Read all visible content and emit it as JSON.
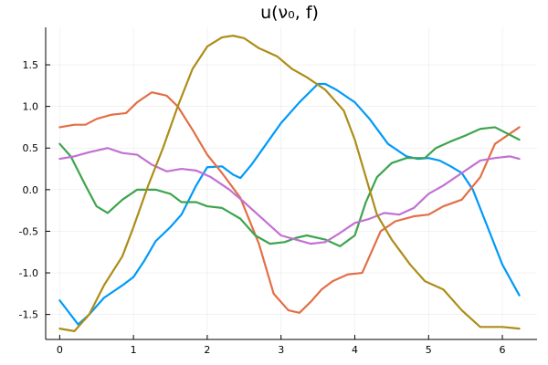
{
  "chart_data": {
    "type": "line",
    "title": "u(ν₀, f)",
    "xlabel": "",
    "ylabel": "",
    "xlim": [
      -0.19,
      6.47
    ],
    "ylim": [
      -1.8,
      1.95
    ],
    "xticks": [
      0,
      1,
      2,
      3,
      4,
      5,
      6
    ],
    "yticks": [
      -1.5,
      -1.0,
      -0.5,
      0.0,
      0.5,
      1.0,
      1.5
    ],
    "ytick_labels": [
      "-1.5",
      "-1.0",
      "-0.5",
      "0.0",
      "0.5",
      "1.0",
      "1.5"
    ],
    "grid": true,
    "legend": "none",
    "series": [
      {
        "color": "#009af9",
        "x": [
          0,
          0.25,
          0.4,
          0.6,
          0.85,
          1.0,
          1.15,
          1.3,
          1.5,
          1.65,
          1.85,
          2.0,
          2.2,
          2.35,
          2.45,
          2.6,
          2.8,
          3.0,
          3.25,
          3.5,
          3.6,
          3.75,
          4.0,
          4.2,
          4.45,
          4.7,
          4.85,
          5.0,
          5.15,
          5.3,
          5.45,
          5.6,
          5.8,
          6.0,
          6.23
        ],
        "y": [
          -1.33,
          -1.62,
          -1.5,
          -1.3,
          -1.15,
          -1.05,
          -0.85,
          -0.62,
          -0.45,
          -0.3,
          0.05,
          0.27,
          0.28,
          0.18,
          0.14,
          0.3,
          0.55,
          0.8,
          1.05,
          1.27,
          1.27,
          1.2,
          1.05,
          0.85,
          0.55,
          0.4,
          0.37,
          0.38,
          0.35,
          0.28,
          0.2,
          0.0,
          -0.45,
          -0.9,
          -1.27
        ]
      },
      {
        "color": "#e26f46",
        "x": [
          0,
          0.2,
          0.35,
          0.5,
          0.7,
          0.9,
          1.05,
          1.25,
          1.45,
          1.6,
          1.8,
          2.0,
          2.2,
          2.45,
          2.7,
          2.9,
          3.1,
          3.25,
          3.4,
          3.55,
          3.7,
          3.9,
          4.1,
          4.2,
          4.35,
          4.55,
          4.8,
          5.0,
          5.2,
          5.45,
          5.7,
          5.9,
          6.23
        ],
        "y": [
          0.75,
          0.78,
          0.78,
          0.85,
          0.9,
          0.92,
          1.05,
          1.17,
          1.13,
          1.0,
          0.72,
          0.42,
          0.2,
          -0.1,
          -0.65,
          -1.25,
          -1.45,
          -1.48,
          -1.35,
          -1.2,
          -1.1,
          -1.02,
          -1.0,
          -0.8,
          -0.5,
          -0.38,
          -0.32,
          -0.3,
          -0.2,
          -0.12,
          0.15,
          0.55,
          0.75
        ]
      },
      {
        "color": "#3da44d",
        "x": [
          0,
          0.15,
          0.35,
          0.5,
          0.65,
          0.85,
          1.05,
          1.3,
          1.5,
          1.65,
          1.85,
          2.0,
          2.2,
          2.45,
          2.65,
          2.85,
          3.05,
          3.2,
          3.35,
          3.6,
          3.8,
          4.0,
          4.15,
          4.3,
          4.5,
          4.7,
          4.95,
          5.1,
          5.3,
          5.5,
          5.7,
          5.9,
          6.23
        ],
        "y": [
          0.55,
          0.4,
          0.05,
          -0.2,
          -0.28,
          -0.12,
          0.0,
          0.0,
          -0.05,
          -0.15,
          -0.15,
          -0.2,
          -0.22,
          -0.35,
          -0.55,
          -0.65,
          -0.63,
          -0.58,
          -0.55,
          -0.6,
          -0.68,
          -0.55,
          -0.15,
          0.15,
          0.32,
          0.38,
          0.38,
          0.5,
          0.58,
          0.65,
          0.73,
          0.75,
          0.6
        ]
      },
      {
        "color": "#c271d2",
        "x": [
          0,
          0.2,
          0.4,
          0.65,
          0.85,
          1.05,
          1.25,
          1.45,
          1.65,
          1.85,
          2.05,
          2.3,
          2.5,
          2.75,
          3.0,
          3.2,
          3.4,
          3.6,
          3.8,
          4.0,
          4.2,
          4.4,
          4.6,
          4.8,
          5.0,
          5.2,
          5.45,
          5.7,
          5.9,
          6.1,
          6.23
        ],
        "y": [
          0.37,
          0.4,
          0.45,
          0.5,
          0.44,
          0.42,
          0.3,
          0.22,
          0.25,
          0.23,
          0.15,
          0.0,
          -0.15,
          -0.35,
          -0.55,
          -0.6,
          -0.65,
          -0.63,
          -0.52,
          -0.4,
          -0.35,
          -0.28,
          -0.3,
          -0.22,
          -0.05,
          0.05,
          0.2,
          0.35,
          0.38,
          0.4,
          0.37
        ]
      },
      {
        "color": "#ac8d18",
        "x": [
          0,
          0.2,
          0.4,
          0.6,
          0.85,
          1.0,
          1.2,
          1.4,
          1.6,
          1.8,
          2.0,
          2.2,
          2.35,
          2.5,
          2.7,
          2.95,
          3.15,
          3.35,
          3.6,
          3.85,
          4.0,
          4.15,
          4.3,
          4.5,
          4.75,
          4.95,
          5.2,
          5.45,
          5.7,
          5.85,
          6.0,
          6.23
        ],
        "y": [
          -1.67,
          -1.7,
          -1.5,
          -1.15,
          -0.8,
          -0.45,
          0.05,
          0.5,
          1.0,
          1.45,
          1.72,
          1.83,
          1.85,
          1.82,
          1.7,
          1.6,
          1.45,
          1.35,
          1.2,
          0.95,
          0.6,
          0.15,
          -0.3,
          -0.6,
          -0.9,
          -1.1,
          -1.2,
          -1.45,
          -1.65,
          -1.65,
          -1.65,
          -1.67
        ]
      }
    ]
  }
}
